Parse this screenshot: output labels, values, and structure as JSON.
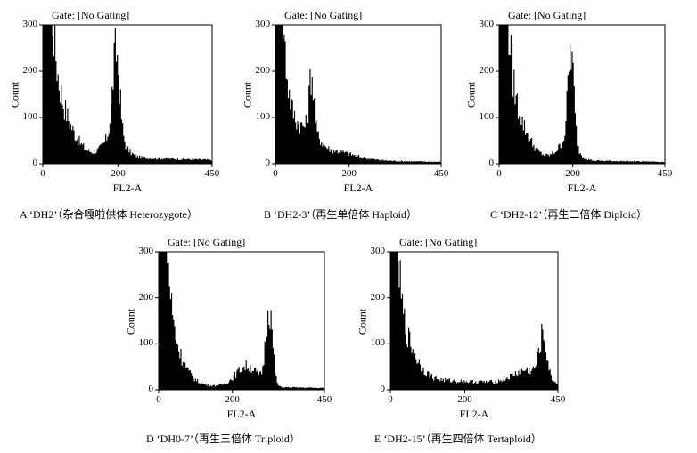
{
  "chart_data": [
    {
      "id": "A",
      "type": "histogram",
      "title": "Gate: [No Gating]",
      "xlabel": "FL2-A",
      "ylabel": "Count",
      "xlim": [
        0,
        450
      ],
      "ylim": [
        0,
        300
      ],
      "xticks": [
        "0",
        "200",
        "450"
      ],
      "yticks": [
        "0",
        "100",
        "200",
        "300"
      ],
      "caption": "A ‘DH2’（杂合嘎啦供体 Heterozygote）",
      "peaks": [
        {
          "x": 2,
          "y": 320,
          "w": 18
        },
        {
          "x": 0,
          "y": 200,
          "w": 50
        },
        {
          "x": 195,
          "y": 180,
          "w": 9
        },
        {
          "x": 190,
          "y": 50,
          "w": 25
        }
      ],
      "baseline": 20
    },
    {
      "id": "B",
      "type": "histogram",
      "title": "Gate: [No Gating]",
      "xlabel": "FL2-A",
      "ylabel": "Count",
      "xlim": [
        0,
        450
      ],
      "ylim": [
        0,
        300
      ],
      "xticks": [
        "0",
        "200",
        "450"
      ],
      "yticks": [
        "0",
        "100",
        "200",
        "300"
      ],
      "caption": "B ‘DH2-3’（再生单倍体 Haploid）",
      "peaks": [
        {
          "x": 2,
          "y": 320,
          "w": 16
        },
        {
          "x": 0,
          "y": 160,
          "w": 45
        },
        {
          "x": 98,
          "y": 120,
          "w": 6
        },
        {
          "x": 98,
          "y": 40,
          "w": 22
        },
        {
          "x": 150,
          "y": 20,
          "w": 60
        }
      ],
      "baseline": 10
    },
    {
      "id": "C",
      "type": "histogram",
      "title": "Gate: [No Gating]",
      "xlabel": "FL2-A",
      "ylabel": "Count",
      "xlim": [
        0,
        450
      ],
      "ylim": [
        0,
        300
      ],
      "xticks": [
        "0",
        "200",
        "450"
      ],
      "yticks": [
        "0",
        "100",
        "200",
        "300"
      ],
      "caption": "C ‘DH2-12’（再生二倍体 Diploid）",
      "peaks": [
        {
          "x": 2,
          "y": 320,
          "w": 18
        },
        {
          "x": 0,
          "y": 180,
          "w": 50
        },
        {
          "x": 195,
          "y": 200,
          "w": 8
        },
        {
          "x": 185,
          "y": 40,
          "w": 25
        }
      ],
      "baseline": 10
    },
    {
      "id": "D",
      "type": "histogram",
      "title": "Gate: [No Gating]",
      "xlabel": "FL2-A",
      "ylabel": "Count",
      "xlim": [
        0,
        450
      ],
      "ylim": [
        0,
        300
      ],
      "xticks": [
        "0",
        "200",
        "450"
      ],
      "yticks": [
        "0",
        "100",
        "200",
        "300"
      ],
      "caption": "D ‘DH0-7’（再生三倍体 Triploid）",
      "peaks": [
        {
          "x": 2,
          "y": 320,
          "w": 18
        },
        {
          "x": 0,
          "y": 160,
          "w": 45
        },
        {
          "x": 300,
          "y": 170,
          "w": 9
        },
        {
          "x": 240,
          "y": 45,
          "w": 30
        }
      ],
      "baseline": 10
    },
    {
      "id": "E",
      "type": "histogram",
      "title": "Gate: [No Gating]",
      "xlabel": "FL2-A",
      "ylabel": "Count",
      "xlim": [
        0,
        450
      ],
      "ylim": [
        0,
        300
      ],
      "xticks": [
        "0",
        "200",
        "450"
      ],
      "yticks": [
        "0",
        "100",
        "200",
        "300"
      ],
      "caption": "E ‘DH2-15’（再生四倍体 Tertaploid）",
      "peaks": [
        {
          "x": 2,
          "y": 320,
          "w": 14
        },
        {
          "x": 0,
          "y": 160,
          "w": 45
        },
        {
          "x": 410,
          "y": 90,
          "w": 10
        },
        {
          "x": 370,
          "y": 30,
          "w": 40
        }
      ],
      "baseline": 25
    }
  ]
}
